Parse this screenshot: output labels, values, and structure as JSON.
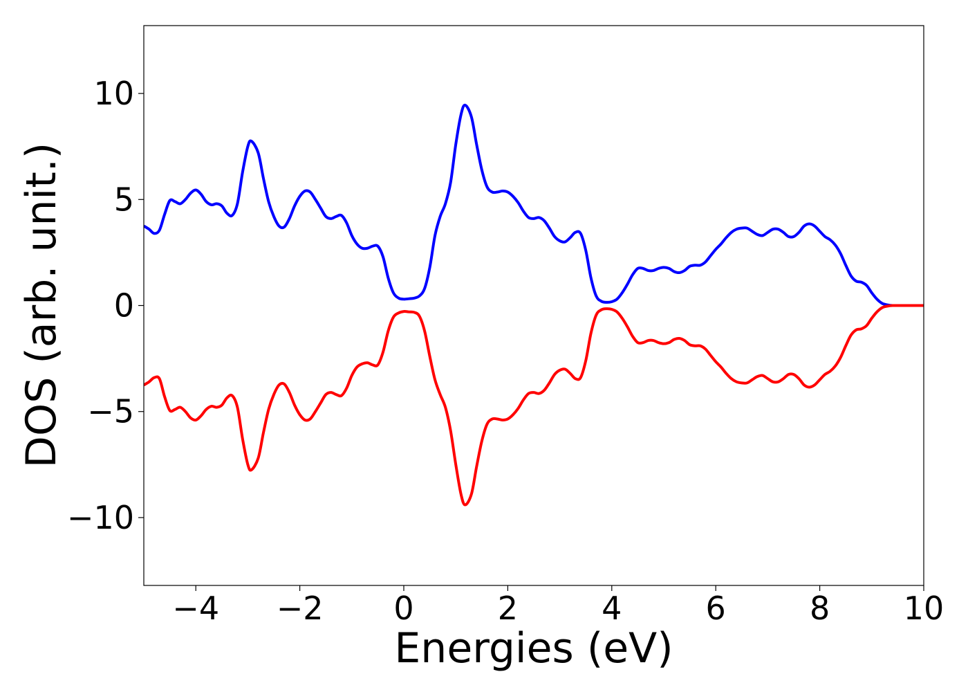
{
  "chart_data": {
    "type": "line",
    "title": "",
    "xlabel": "Energies (eV)",
    "ylabel": "DOS (arb. unit.)",
    "xlim": [
      -5,
      10
    ],
    "ylim": [
      -13.2,
      13.2
    ],
    "grid": false,
    "legend": "none",
    "x_ticks": [
      -4,
      -2,
      0,
      2,
      4,
      6,
      8,
      10
    ],
    "x_tick_labels": [
      "−4",
      "−2",
      "0",
      "2",
      "4",
      "6",
      "8",
      "10"
    ],
    "y_ticks": [
      -10,
      -5,
      0,
      5,
      10
    ],
    "y_tick_labels": [
      "−10",
      "−5",
      "0",
      "5",
      "10"
    ],
    "series": [
      {
        "color": "#0000ff",
        "points": [
          [
            -5.0,
            3.75
          ],
          [
            -4.9,
            3.6
          ],
          [
            -4.8,
            3.4
          ],
          [
            -4.7,
            3.55
          ],
          [
            -4.6,
            4.3
          ],
          [
            -4.5,
            4.95
          ],
          [
            -4.4,
            4.9
          ],
          [
            -4.3,
            4.8
          ],
          [
            -4.2,
            5.0
          ],
          [
            -4.1,
            5.3
          ],
          [
            -4.0,
            5.45
          ],
          [
            -3.9,
            5.25
          ],
          [
            -3.8,
            4.9
          ],
          [
            -3.7,
            4.75
          ],
          [
            -3.6,
            4.8
          ],
          [
            -3.5,
            4.7
          ],
          [
            -3.4,
            4.35
          ],
          [
            -3.3,
            4.25
          ],
          [
            -3.2,
            4.8
          ],
          [
            -3.1,
            6.3
          ],
          [
            -3.0,
            7.5
          ],
          [
            -2.93,
            7.75
          ],
          [
            -2.8,
            7.2
          ],
          [
            -2.7,
            6.0
          ],
          [
            -2.6,
            4.9
          ],
          [
            -2.5,
            4.2
          ],
          [
            -2.4,
            3.75
          ],
          [
            -2.3,
            3.7
          ],
          [
            -2.2,
            4.1
          ],
          [
            -2.1,
            4.7
          ],
          [
            -2.0,
            5.15
          ],
          [
            -1.9,
            5.4
          ],
          [
            -1.8,
            5.35
          ],
          [
            -1.7,
            5.0
          ],
          [
            -1.6,
            4.6
          ],
          [
            -1.5,
            4.2
          ],
          [
            -1.4,
            4.1
          ],
          [
            -1.3,
            4.2
          ],
          [
            -1.2,
            4.25
          ],
          [
            -1.1,
            3.9
          ],
          [
            -1.0,
            3.3
          ],
          [
            -0.9,
            2.9
          ],
          [
            -0.8,
            2.7
          ],
          [
            -0.7,
            2.7
          ],
          [
            -0.6,
            2.8
          ],
          [
            -0.5,
            2.8
          ],
          [
            -0.4,
            2.3
          ],
          [
            -0.3,
            1.3
          ],
          [
            -0.2,
            0.6
          ],
          [
            -0.1,
            0.35
          ],
          [
            0.0,
            0.3
          ],
          [
            0.1,
            0.32
          ],
          [
            0.2,
            0.35
          ],
          [
            0.3,
            0.45
          ],
          [
            0.4,
            0.8
          ],
          [
            0.5,
            1.8
          ],
          [
            0.6,
            3.3
          ],
          [
            0.7,
            4.2
          ],
          [
            0.8,
            4.8
          ],
          [
            0.9,
            5.8
          ],
          [
            1.0,
            7.6
          ],
          [
            1.1,
            9.0
          ],
          [
            1.18,
            9.45
          ],
          [
            1.3,
            8.9
          ],
          [
            1.4,
            7.6
          ],
          [
            1.5,
            6.4
          ],
          [
            1.6,
            5.6
          ],
          [
            1.7,
            5.35
          ],
          [
            1.8,
            5.35
          ],
          [
            1.9,
            5.4
          ],
          [
            2.0,
            5.35
          ],
          [
            2.1,
            5.15
          ],
          [
            2.2,
            4.85
          ],
          [
            2.3,
            4.45
          ],
          [
            2.4,
            4.15
          ],
          [
            2.5,
            4.1
          ],
          [
            2.6,
            4.15
          ],
          [
            2.7,
            4.0
          ],
          [
            2.8,
            3.65
          ],
          [
            2.9,
            3.25
          ],
          [
            3.0,
            3.05
          ],
          [
            3.1,
            3.0
          ],
          [
            3.2,
            3.2
          ],
          [
            3.3,
            3.45
          ],
          [
            3.4,
            3.4
          ],
          [
            3.5,
            2.6
          ],
          [
            3.6,
            1.3
          ],
          [
            3.7,
            0.45
          ],
          [
            3.8,
            0.2
          ],
          [
            3.9,
            0.15
          ],
          [
            4.0,
            0.18
          ],
          [
            4.1,
            0.3
          ],
          [
            4.2,
            0.6
          ],
          [
            4.3,
            1.0
          ],
          [
            4.4,
            1.45
          ],
          [
            4.5,
            1.75
          ],
          [
            4.6,
            1.75
          ],
          [
            4.7,
            1.65
          ],
          [
            4.8,
            1.65
          ],
          [
            4.9,
            1.75
          ],
          [
            5.0,
            1.8
          ],
          [
            5.1,
            1.75
          ],
          [
            5.2,
            1.6
          ],
          [
            5.3,
            1.55
          ],
          [
            5.4,
            1.65
          ],
          [
            5.5,
            1.85
          ],
          [
            5.6,
            1.9
          ],
          [
            5.7,
            1.9
          ],
          [
            5.8,
            2.05
          ],
          [
            5.9,
            2.35
          ],
          [
            6.0,
            2.65
          ],
          [
            6.1,
            2.9
          ],
          [
            6.2,
            3.2
          ],
          [
            6.3,
            3.45
          ],
          [
            6.4,
            3.6
          ],
          [
            6.5,
            3.65
          ],
          [
            6.6,
            3.65
          ],
          [
            6.7,
            3.5
          ],
          [
            6.8,
            3.35
          ],
          [
            6.9,
            3.3
          ],
          [
            7.0,
            3.45
          ],
          [
            7.1,
            3.6
          ],
          [
            7.2,
            3.6
          ],
          [
            7.3,
            3.45
          ],
          [
            7.4,
            3.25
          ],
          [
            7.5,
            3.25
          ],
          [
            7.6,
            3.45
          ],
          [
            7.7,
            3.75
          ],
          [
            7.8,
            3.85
          ],
          [
            7.9,
            3.75
          ],
          [
            8.0,
            3.5
          ],
          [
            8.1,
            3.25
          ],
          [
            8.2,
            3.1
          ],
          [
            8.3,
            2.85
          ],
          [
            8.4,
            2.45
          ],
          [
            8.5,
            1.9
          ],
          [
            8.6,
            1.4
          ],
          [
            8.7,
            1.15
          ],
          [
            8.8,
            1.1
          ],
          [
            8.9,
            0.95
          ],
          [
            9.0,
            0.6
          ],
          [
            9.1,
            0.3
          ],
          [
            9.2,
            0.1
          ],
          [
            9.3,
            0.03
          ],
          [
            9.4,
            0.0
          ],
          [
            9.6,
            0.0
          ],
          [
            10.0,
            0.0
          ]
        ]
      },
      {
        "color": "#ff0000",
        "points": [
          [
            -5.0,
            -3.75
          ],
          [
            -4.9,
            -3.6
          ],
          [
            -4.8,
            -3.4
          ],
          [
            -4.7,
            -3.45
          ],
          [
            -4.6,
            -4.3
          ],
          [
            -4.5,
            -4.95
          ],
          [
            -4.4,
            -4.9
          ],
          [
            -4.3,
            -4.8
          ],
          [
            -4.2,
            -5.0
          ],
          [
            -4.1,
            -5.3
          ],
          [
            -4.0,
            -5.4
          ],
          [
            -3.9,
            -5.2
          ],
          [
            -3.8,
            -4.9
          ],
          [
            -3.7,
            -4.75
          ],
          [
            -3.6,
            -4.8
          ],
          [
            -3.5,
            -4.7
          ],
          [
            -3.4,
            -4.35
          ],
          [
            -3.3,
            -4.25
          ],
          [
            -3.2,
            -4.8
          ],
          [
            -3.1,
            -6.3
          ],
          [
            -3.0,
            -7.5
          ],
          [
            -2.93,
            -7.75
          ],
          [
            -2.8,
            -7.2
          ],
          [
            -2.7,
            -6.0
          ],
          [
            -2.6,
            -4.9
          ],
          [
            -2.5,
            -4.2
          ],
          [
            -2.4,
            -3.75
          ],
          [
            -2.3,
            -3.7
          ],
          [
            -2.2,
            -4.1
          ],
          [
            -2.1,
            -4.7
          ],
          [
            -2.0,
            -5.15
          ],
          [
            -1.9,
            -5.4
          ],
          [
            -1.8,
            -5.35
          ],
          [
            -1.7,
            -5.0
          ],
          [
            -1.6,
            -4.6
          ],
          [
            -1.5,
            -4.2
          ],
          [
            -1.4,
            -4.1
          ],
          [
            -1.3,
            -4.2
          ],
          [
            -1.2,
            -4.25
          ],
          [
            -1.1,
            -3.9
          ],
          [
            -1.0,
            -3.3
          ],
          [
            -0.9,
            -2.9
          ],
          [
            -0.8,
            -2.75
          ],
          [
            -0.7,
            -2.7
          ],
          [
            -0.6,
            -2.8
          ],
          [
            -0.5,
            -2.8
          ],
          [
            -0.4,
            -2.2
          ],
          [
            -0.3,
            -1.2
          ],
          [
            -0.2,
            -0.55
          ],
          [
            -0.1,
            -0.35
          ],
          [
            0.0,
            -0.28
          ],
          [
            0.1,
            -0.3
          ],
          [
            0.2,
            -0.32
          ],
          [
            0.3,
            -0.5
          ],
          [
            0.4,
            -1.2
          ],
          [
            0.5,
            -2.4
          ],
          [
            0.6,
            -3.5
          ],
          [
            0.7,
            -4.2
          ],
          [
            0.8,
            -4.8
          ],
          [
            0.9,
            -5.9
          ],
          [
            1.0,
            -7.5
          ],
          [
            1.1,
            -8.9
          ],
          [
            1.18,
            -9.4
          ],
          [
            1.3,
            -8.9
          ],
          [
            1.4,
            -7.6
          ],
          [
            1.5,
            -6.4
          ],
          [
            1.6,
            -5.6
          ],
          [
            1.7,
            -5.35
          ],
          [
            1.8,
            -5.35
          ],
          [
            1.9,
            -5.4
          ],
          [
            2.0,
            -5.35
          ],
          [
            2.1,
            -5.15
          ],
          [
            2.2,
            -4.85
          ],
          [
            2.3,
            -4.45
          ],
          [
            2.4,
            -4.15
          ],
          [
            2.5,
            -4.1
          ],
          [
            2.6,
            -4.15
          ],
          [
            2.7,
            -4.0
          ],
          [
            2.8,
            -3.65
          ],
          [
            2.9,
            -3.25
          ],
          [
            3.0,
            -3.05
          ],
          [
            3.1,
            -3.0
          ],
          [
            3.2,
            -3.2
          ],
          [
            3.3,
            -3.45
          ],
          [
            3.4,
            -3.4
          ],
          [
            3.5,
            -2.6
          ],
          [
            3.6,
            -1.3
          ],
          [
            3.7,
            -0.45
          ],
          [
            3.8,
            -0.2
          ],
          [
            3.9,
            -0.15
          ],
          [
            4.0,
            -0.18
          ],
          [
            4.1,
            -0.3
          ],
          [
            4.2,
            -0.6
          ],
          [
            4.3,
            -1.0
          ],
          [
            4.4,
            -1.45
          ],
          [
            4.5,
            -1.75
          ],
          [
            4.6,
            -1.75
          ],
          [
            4.7,
            -1.65
          ],
          [
            4.8,
            -1.65
          ],
          [
            4.9,
            -1.75
          ],
          [
            5.0,
            -1.8
          ],
          [
            5.1,
            -1.75
          ],
          [
            5.2,
            -1.6
          ],
          [
            5.3,
            -1.55
          ],
          [
            5.4,
            -1.65
          ],
          [
            5.5,
            -1.85
          ],
          [
            5.6,
            -1.9
          ],
          [
            5.7,
            -1.9
          ],
          [
            5.8,
            -2.05
          ],
          [
            5.9,
            -2.35
          ],
          [
            6.0,
            -2.65
          ],
          [
            6.1,
            -2.9
          ],
          [
            6.2,
            -3.2
          ],
          [
            6.3,
            -3.45
          ],
          [
            6.4,
            -3.6
          ],
          [
            6.5,
            -3.65
          ],
          [
            6.6,
            -3.65
          ],
          [
            6.7,
            -3.5
          ],
          [
            6.8,
            -3.35
          ],
          [
            6.9,
            -3.3
          ],
          [
            7.0,
            -3.45
          ],
          [
            7.1,
            -3.6
          ],
          [
            7.2,
            -3.6
          ],
          [
            7.3,
            -3.45
          ],
          [
            7.4,
            -3.25
          ],
          [
            7.5,
            -3.25
          ],
          [
            7.6,
            -3.45
          ],
          [
            7.7,
            -3.75
          ],
          [
            7.8,
            -3.85
          ],
          [
            7.9,
            -3.75
          ],
          [
            8.0,
            -3.5
          ],
          [
            8.1,
            -3.25
          ],
          [
            8.2,
            -3.1
          ],
          [
            8.3,
            -2.85
          ],
          [
            8.4,
            -2.45
          ],
          [
            8.5,
            -1.9
          ],
          [
            8.6,
            -1.4
          ],
          [
            8.7,
            -1.15
          ],
          [
            8.8,
            -1.1
          ],
          [
            8.9,
            -0.95
          ],
          [
            9.0,
            -0.6
          ],
          [
            9.1,
            -0.3
          ],
          [
            9.2,
            -0.1
          ],
          [
            9.3,
            -0.03
          ],
          [
            9.4,
            0.0
          ],
          [
            9.6,
            0.0
          ],
          [
            10.0,
            0.0
          ]
        ]
      }
    ]
  }
}
